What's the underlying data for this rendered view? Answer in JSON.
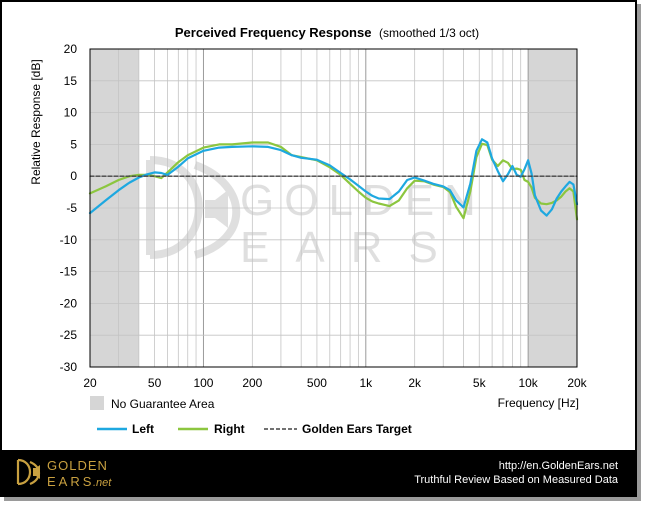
{
  "chart_data": {
    "type": "line",
    "title": "Perceived Frequency Response",
    "subtitle": "(smoothed 1/3 oct)",
    "ylabel": "Relative Response [dB]",
    "xlabel": "Frequency [Hz]",
    "x_scale": "log",
    "xlim": [
      20,
      20000
    ],
    "ylim": [
      -30,
      20
    ],
    "grid": true,
    "x_ticks": [
      {
        "value": 20,
        "label": "20"
      },
      {
        "value": 50,
        "label": "50"
      },
      {
        "value": 100,
        "label": "100"
      },
      {
        "value": 200,
        "label": "200"
      },
      {
        "value": 500,
        "label": "500"
      },
      {
        "value": 1000,
        "label": "1k"
      },
      {
        "value": 2000,
        "label": "2k"
      },
      {
        "value": 5000,
        "label": "5k"
      },
      {
        "value": 10000,
        "label": "10k"
      },
      {
        "value": 20000,
        "label": "20k"
      }
    ],
    "y_ticks": [
      20,
      15,
      10,
      5,
      0,
      -5,
      -10,
      -15,
      -20,
      -25,
      -30
    ],
    "no_guarantee_ranges": [
      [
        20,
        40
      ],
      [
        10000,
        20000
      ]
    ],
    "no_guarantee_label": "No Guarantee Area",
    "series": [
      {
        "name": "Left",
        "color": "#1ea8e0",
        "style": "solid",
        "x": [
          20,
          25,
          30,
          35,
          40,
          45,
          50,
          55,
          60,
          70,
          80,
          100,
          125,
          150,
          200,
          250,
          300,
          350,
          400,
          500,
          600,
          700,
          800,
          900,
          1000,
          1100,
          1200,
          1400,
          1600,
          1800,
          2000,
          2300,
          2600,
          3000,
          3300,
          3600,
          4000,
          4400,
          4800,
          5200,
          5600,
          6000,
          6500,
          7000,
          7500,
          8000,
          8500,
          9000,
          9500,
          10000,
          10500,
          11000,
          12000,
          13000,
          14000,
          15000,
          16000,
          17000,
          18000,
          19000,
          20000
        ],
        "y": [
          -5.8,
          -3.8,
          -2.2,
          -1.0,
          -0.2,
          0.3,
          0.6,
          0.5,
          0.2,
          1.5,
          2.8,
          4.0,
          4.5,
          4.6,
          4.7,
          4.6,
          4.1,
          3.3,
          2.9,
          2.6,
          1.7,
          0.5,
          -0.5,
          -1.5,
          -2.4,
          -3.1,
          -3.5,
          -3.6,
          -2.4,
          -0.6,
          -0.2,
          -0.7,
          -1.2,
          -1.6,
          -2.2,
          -3.8,
          -4.9,
          -1.2,
          4.0,
          5.8,
          5.3,
          2.8,
          0.8,
          -0.8,
          0.3,
          1.6,
          0.2,
          -0.1,
          1.1,
          2.5,
          0.4,
          -3.0,
          -5.4,
          -6.2,
          -5.2,
          -3.5,
          -2.4,
          -1.6,
          -0.9,
          -1.3,
          -4.4
        ]
      },
      {
        "name": "Right",
        "color": "#8cc63f",
        "style": "solid",
        "x": [
          20,
          25,
          30,
          35,
          40,
          45,
          50,
          55,
          60,
          70,
          80,
          100,
          125,
          150,
          200,
          250,
          300,
          350,
          400,
          500,
          600,
          700,
          800,
          900,
          1000,
          1100,
          1200,
          1400,
          1600,
          1800,
          2000,
          2300,
          2600,
          3000,
          3300,
          3600,
          4000,
          4400,
          4800,
          5200,
          5600,
          6000,
          6500,
          7000,
          7500,
          8000,
          8500,
          9000,
          9500,
          10000,
          10500,
          11000,
          12000,
          13000,
          14000,
          15000,
          16000,
          17000,
          18000,
          19000,
          20000
        ],
        "y": [
          -2.7,
          -1.6,
          -0.6,
          0.0,
          0.2,
          0.2,
          0.0,
          -0.3,
          0.6,
          2.2,
          3.3,
          4.5,
          5.0,
          5.0,
          5.3,
          5.3,
          4.6,
          3.3,
          3.0,
          2.5,
          1.4,
          0.2,
          -1.2,
          -2.4,
          -3.4,
          -4.0,
          -4.3,
          -4.7,
          -3.8,
          -1.9,
          -0.7,
          -0.8,
          -1.3,
          -1.7,
          -2.5,
          -4.8,
          -6.6,
          -2.4,
          3.0,
          5.1,
          4.9,
          2.6,
          1.6,
          2.5,
          2.1,
          1.1,
          1.2,
          1.0,
          -0.6,
          -0.9,
          -1.8,
          -3.4,
          -4.3,
          -4.4,
          -4.2,
          -3.8,
          -3.2,
          -2.4,
          -1.9,
          -2.4,
          -6.8
        ]
      },
      {
        "name": "Golden Ears Target",
        "color": "#444444",
        "style": "dashed",
        "x": [
          20,
          20000
        ],
        "y": [
          0,
          0
        ]
      }
    ]
  },
  "watermark": {
    "line1": "GOLDEN",
    "line2": "EARS"
  },
  "footer": {
    "logo_line1": "GOLDEN",
    "logo_line2": "EARS",
    "logo_suffix": ".net",
    "url": "http://en.GoldenEars.net",
    "tagline": "Truthful Review Based on Measured Data"
  },
  "colors": {
    "background_band": "#d6d6d6",
    "footer_bg": "#000000",
    "logo_gold": "#c8a040"
  }
}
